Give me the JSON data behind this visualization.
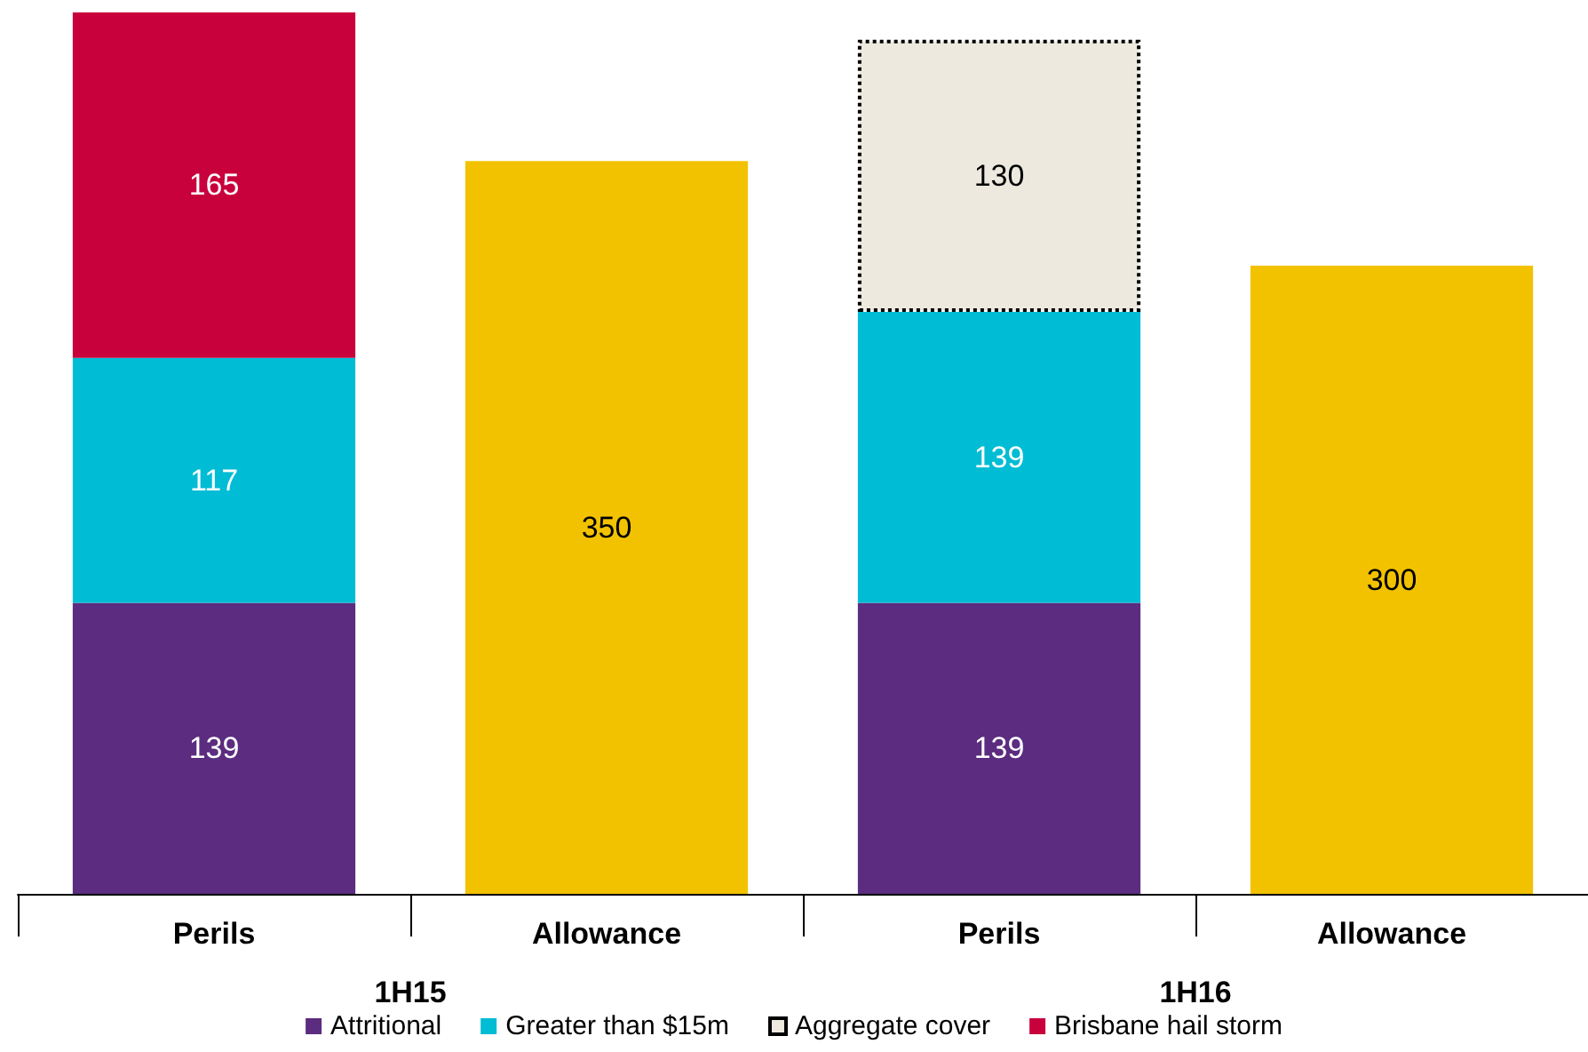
{
  "chart_data": {
    "type": "bar",
    "stacked": true,
    "data_labels": true,
    "legend": "bottom",
    "grid": false,
    "categories": [
      "Perils",
      "Allowance",
      "Perils",
      "Allowance"
    ],
    "series": [
      {
        "name": "Attritional",
        "color": "#5b2c7f",
        "values": [
          139,
          null,
          139,
          null
        ]
      },
      {
        "name": "Greater than $15m",
        "color": "#00bcd4",
        "values": [
          117,
          null,
          139,
          null
        ]
      },
      {
        "name": "Aggregate cover",
        "color": "#ede9df",
        "line_style": "dotted",
        "values": [
          null,
          null,
          130,
          null
        ]
      },
      {
        "name": "Brisbane hail storm",
        "color": "#c8003c",
        "values": [
          165,
          null,
          null,
          null
        ]
      },
      {
        "color": "#f2c200",
        "values": [
          null,
          350,
          null,
          300
        ]
      }
    ],
    "annotations": [
      "1H15",
      "1H16"
    ]
  }
}
